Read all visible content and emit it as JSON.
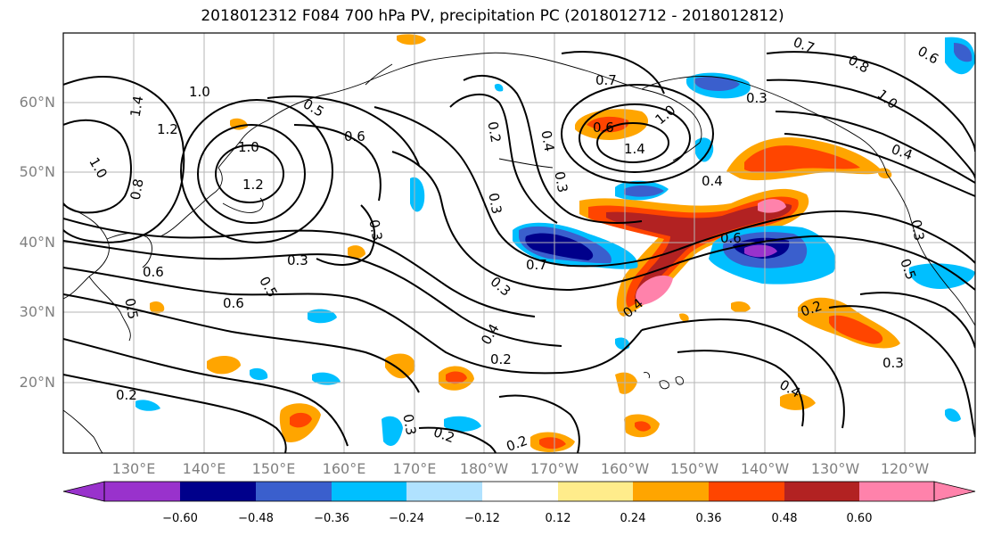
{
  "title": "2018012312 F084 700 hPa PV, precipitation PC (2018012712 - 2018012812)",
  "lat_labels": [
    "60°N",
    "50°N",
    "40°N",
    "30°N",
    "20°N"
  ],
  "lon_labels": [
    "130°E",
    "140°E",
    "150°E",
    "160°E",
    "170°E",
    "180°W",
    "170°W",
    "160°W",
    "150°W",
    "140°W",
    "130°W",
    "120°W"
  ],
  "contour_labels": [
    "1.4",
    "1.2",
    "1.0",
    "1.0",
    "1.2",
    "1.0",
    "0.8",
    "0.6",
    "0.5",
    "0.3",
    "0.3",
    "0.6",
    "0.5",
    "0.2",
    "0.6",
    "0.3",
    "0.7",
    "0.2",
    "0.4",
    "0.3",
    "0.5",
    "0.7",
    "0.3",
    "0.4",
    "0.2",
    "0.2",
    "0.3",
    "0.2",
    "0.6",
    "1.4",
    "1.0",
    "0.4",
    "0.4",
    "0.6",
    "0.2",
    "0.3",
    "0.4",
    "0.7",
    "0.8",
    "0.6",
    "1.0",
    "0.4",
    "0.3",
    "0.5",
    "0.3"
  ],
  "colorbar": {
    "tick_labels": [
      "−0.60",
      "−0.48",
      "−0.36",
      "−0.24",
      "−0.12",
      "0.12",
      "0.24",
      "0.36",
      "0.48",
      "0.60"
    ],
    "colors": [
      "#9932cc",
      "#00008b",
      "#3a5fcd",
      "#00bfff",
      "#b0e2ff",
      "#ffffff",
      "#ffec8b",
      "#ffa500",
      "#ff4500",
      "#b22222",
      "#ff82ab"
    ]
  },
  "chart_data": {
    "type": "map",
    "projection": "cylindrical",
    "extent": {
      "lon_min": 120,
      "lon_max": 250,
      "lat_min": 10,
      "lat_max": 70
    },
    "grid": true,
    "fields": [
      "700 hPa PV (contours)",
      "precipitation PC (shaded)"
    ],
    "colorbar_levels": [
      -0.6,
      -0.48,
      -0.36,
      -0.24,
      -0.12,
      0.12,
      0.24,
      0.36,
      0.48,
      0.6
    ]
  }
}
